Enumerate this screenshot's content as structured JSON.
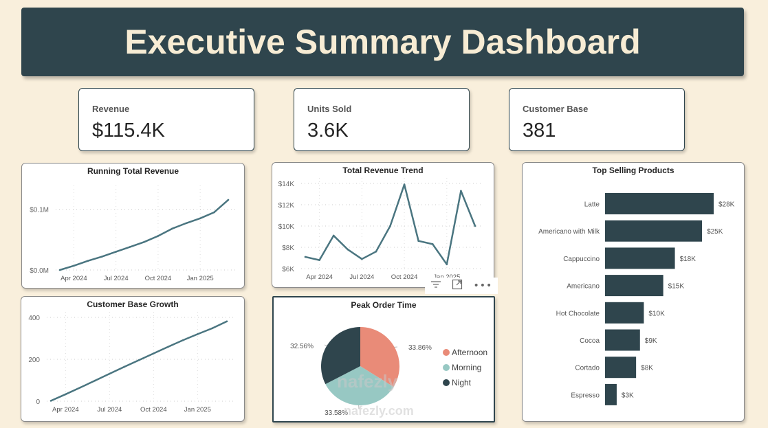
{
  "header": {
    "title": "Executive Summary Dashboard"
  },
  "kpis": [
    {
      "label": "Revenue",
      "value": "$115.4K"
    },
    {
      "label": "Units Sold",
      "value": "3.6K"
    },
    {
      "label": "Customer Base",
      "value": "381"
    }
  ],
  "colors": {
    "primary": "#2f454d",
    "line": "#4a7580",
    "background": "#f9efdc",
    "afternoon": "#e98b78",
    "morning": "#97c8c3",
    "night": "#2f454d"
  },
  "visual_header_icons": [
    "filter-icon",
    "focus-mode-icon",
    "more-options-icon"
  ],
  "watermark": {
    "line1": "nafezly",
    "line2": "nafezly.com"
  },
  "chart_data": [
    {
      "id": "running_total",
      "type": "line",
      "title": "Running Total Revenue",
      "xlabel": "",
      "ylabel": "",
      "x_ticks": [
        "Apr 2024",
        "Jul 2024",
        "Oct 2024",
        "Jan 2025"
      ],
      "y_ticks": [
        "$0.0M",
        "$0.1M"
      ],
      "y_tick_values": [
        0,
        100000
      ],
      "ylim": [
        0,
        130000
      ],
      "grid": true,
      "x": [
        "2024-03",
        "2024-04",
        "2024-05",
        "2024-06",
        "2024-07",
        "2024-08",
        "2024-09",
        "2024-10",
        "2024-11",
        "2024-12",
        "2025-01",
        "2025-02",
        "2025-03"
      ],
      "values": [
        0,
        7000,
        15000,
        22000,
        30000,
        38000,
        46000,
        56000,
        68000,
        77000,
        85000,
        95000,
        115400
      ]
    },
    {
      "id": "revenue_trend",
      "type": "line",
      "title": "Total Revenue Trend",
      "x_ticks": [
        "Apr 2024",
        "Jul 2024",
        "Oct 2024",
        "Jan 2025"
      ],
      "y_ticks": [
        "$6K",
        "$8K",
        "$10K",
        "$12K",
        "$14K"
      ],
      "y_tick_values": [
        6000,
        8000,
        10000,
        12000,
        14000
      ],
      "ylim": [
        6000,
        14000
      ],
      "grid": true,
      "x": [
        "2024-03",
        "2024-04",
        "2024-05",
        "2024-06",
        "2024-07",
        "2024-08",
        "2024-09",
        "2024-10",
        "2024-11",
        "2024-12",
        "2025-01",
        "2025-02",
        "2025-03"
      ],
      "values": [
        7100,
        6800,
        9100,
        7800,
        6900,
        7600,
        10000,
        13900,
        8600,
        8300,
        6400,
        13300,
        10000
      ]
    },
    {
      "id": "customer_growth",
      "type": "line",
      "title": "Customer Base Growth",
      "x_ticks": [
        "Apr 2024",
        "Jul 2024",
        "Oct 2024",
        "Jan 2025"
      ],
      "y_ticks": [
        "0",
        "200",
        "400"
      ],
      "y_tick_values": [
        0,
        200,
        400
      ],
      "ylim": [
        0,
        400
      ],
      "grid": true,
      "x": [
        "2024-03",
        "2024-04",
        "2024-05",
        "2024-06",
        "2024-07",
        "2024-08",
        "2024-09",
        "2024-10",
        "2024-11",
        "2024-12",
        "2025-01",
        "2025-02",
        "2025-03"
      ],
      "values": [
        2,
        33,
        65,
        98,
        131,
        164,
        196,
        228,
        260,
        291,
        320,
        348,
        381
      ]
    },
    {
      "id": "peak_order_time",
      "type": "pie",
      "title": "Peak Order Time",
      "legend_position": "right",
      "slices": [
        {
          "label": "Afternoon",
          "value": 33.86,
          "display": "33.86%",
          "color": "#e98b78"
        },
        {
          "label": "Morning",
          "value": 33.58,
          "display": "33.58%",
          "color": "#97c8c3"
        },
        {
          "label": "Night",
          "value": 32.56,
          "display": "32.56%",
          "color": "#2f454d"
        }
      ]
    },
    {
      "id": "top_products",
      "type": "bar",
      "orientation": "horizontal",
      "title": "Top Selling Products",
      "categories": [
        "Latte",
        "Americano with Milk",
        "Cappuccino",
        "Americano",
        "Hot Chocolate",
        "Cocoa",
        "Cortado",
        "Espresso"
      ],
      "values": [
        28000,
        25000,
        18000,
        15000,
        10000,
        9000,
        8000,
        3000
      ],
      "labels": [
        "$28K",
        "$25K",
        "$18K",
        "$15K",
        "$10K",
        "$9K",
        "$8K",
        "$3K"
      ],
      "xlim": [
        0,
        28000
      ]
    }
  ]
}
